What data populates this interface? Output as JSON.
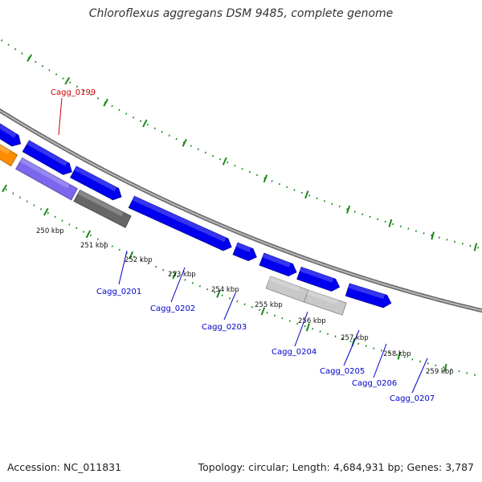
{
  "title": "Chloroflexus aggregans DSM 9485, complete genome",
  "footer": {
    "accession": "Accession: NC_011831",
    "summary": "Topology: circular; Length: 4,684,931 bp; Genes: 3,787"
  },
  "colors": {
    "backbone": "#888888",
    "scale_ticks": "#1a8a1a",
    "cds": "#0000ee",
    "highlight_red": "#ee0000",
    "highlight_orange": "#ff8c00",
    "purple": "#7b68ee",
    "dark_gray": "#666666",
    "light_gray": "#c8c8c8",
    "label_red": "#cc0000",
    "label_blue": "#0000cc"
  },
  "scale_ticks": [
    "250 kbp",
    "251 kbp",
    "252 kbp",
    "253 kbp",
    "254 kbp",
    "255 kbp",
    "256 kbp",
    "257 kbp",
    "258 kbp",
    "259 kbp"
  ],
  "gene_labels": [
    {
      "id": "cagg_0199",
      "text": "Cagg_0199",
      "color": "red"
    },
    {
      "id": "cagg_0201",
      "text": "Cagg_0201",
      "color": "blue"
    },
    {
      "id": "cagg_0202",
      "text": "Cagg_0202",
      "color": "blue"
    },
    {
      "id": "cagg_0203",
      "text": "Cagg_0203",
      "color": "blue"
    },
    {
      "id": "cagg_0204",
      "text": "Cagg_0204",
      "color": "blue"
    },
    {
      "id": "cagg_0205",
      "text": "Cagg_0205",
      "color": "blue"
    },
    {
      "id": "cagg_0206",
      "text": "Cagg_0206",
      "color": "blue"
    },
    {
      "id": "cagg_0207",
      "text": "Cagg_0207",
      "color": "blue"
    }
  ]
}
